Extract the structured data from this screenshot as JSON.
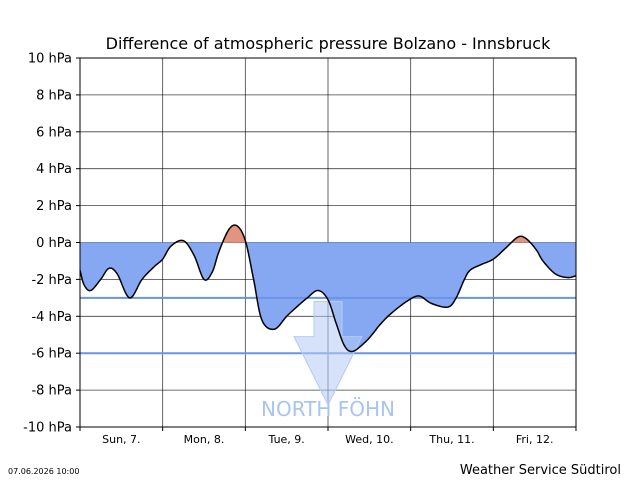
{
  "footer": {
    "timestamp": "07.06.2026 10:00",
    "source": "Weather Service Südtirol"
  },
  "colors": {
    "negative_fill": "#86a8f2",
    "positive_fill": "#e29480",
    "threshold_line": "#6b93e6",
    "arrow": "#b3cbf5",
    "foehn_text": "#a9c4f2"
  },
  "chart_data": {
    "type": "area",
    "title": "Difference of atmospheric pressure Bolzano - Innsbruck",
    "y_unit": "hPa",
    "ylim": [
      -10,
      10
    ],
    "y_ticks": [
      {
        "value": 10,
        "label": "10 hPa"
      },
      {
        "value": 8,
        "label": "8 hPa"
      },
      {
        "value": 6,
        "label": "6 hPa"
      },
      {
        "value": 4,
        "label": "4 hPa"
      },
      {
        "value": 2,
        "label": "2 hPa"
      },
      {
        "value": 0,
        "label": "0 hPa"
      },
      {
        "value": -2,
        "label": "-2 hPa"
      },
      {
        "value": -4,
        "label": "-4 hPa"
      },
      {
        "value": -6,
        "label": "-6 hPa"
      },
      {
        "value": -8,
        "label": "-8 hPa"
      },
      {
        "value": -10,
        "label": "-10 hPa"
      }
    ],
    "x_range_days": [
      0,
      6
    ],
    "x_categories": [
      "Sun, 7.",
      "Mon, 8.",
      "Tue, 9.",
      "Wed, 10.",
      "Thu, 11.",
      "Fri, 12."
    ],
    "thresholds": [
      -3,
      -6
    ],
    "grid": true,
    "annotation": "NORTH FÖHN",
    "series": [
      {
        "x": [
          0,
          0.05,
          0.13,
          0.25,
          0.35,
          0.45,
          0.6,
          0.75,
          0.9,
          1.0,
          1.1,
          1.25,
          1.38,
          1.5,
          1.6,
          1.68,
          1.8,
          1.9,
          2.0,
          2.1,
          2.2,
          2.35,
          2.5,
          2.62,
          2.75,
          2.88,
          3.0,
          3.1,
          3.2,
          3.3,
          3.45,
          3.55,
          3.62,
          3.75,
          3.95,
          4.1,
          4.25,
          4.45,
          4.55,
          4.65,
          4.72,
          4.85,
          5.0,
          5.15,
          5.3,
          5.4,
          5.52,
          5.6,
          5.75,
          5.9,
          6.0
        ],
        "y": [
          -1.5,
          -2.3,
          -2.6,
          -2.0,
          -1.4,
          -1.7,
          -3.0,
          -2.0,
          -1.3,
          -0.9,
          -0.2,
          0.1,
          -0.7,
          -2.0,
          -1.6,
          -0.5,
          0.7,
          0.9,
          0.1,
          -2.0,
          -4.2,
          -4.7,
          -4.0,
          -3.5,
          -3.0,
          -2.6,
          -3.1,
          -4.4,
          -5.6,
          -5.9,
          -5.4,
          -4.9,
          -4.5,
          -3.9,
          -3.2,
          -2.9,
          -3.3,
          -3.5,
          -3.0,
          -2.0,
          -1.5,
          -1.2,
          -0.9,
          -0.3,
          0.3,
          0.2,
          -0.4,
          -1.0,
          -1.7,
          -1.9,
          -1.8
        ]
      }
    ]
  }
}
